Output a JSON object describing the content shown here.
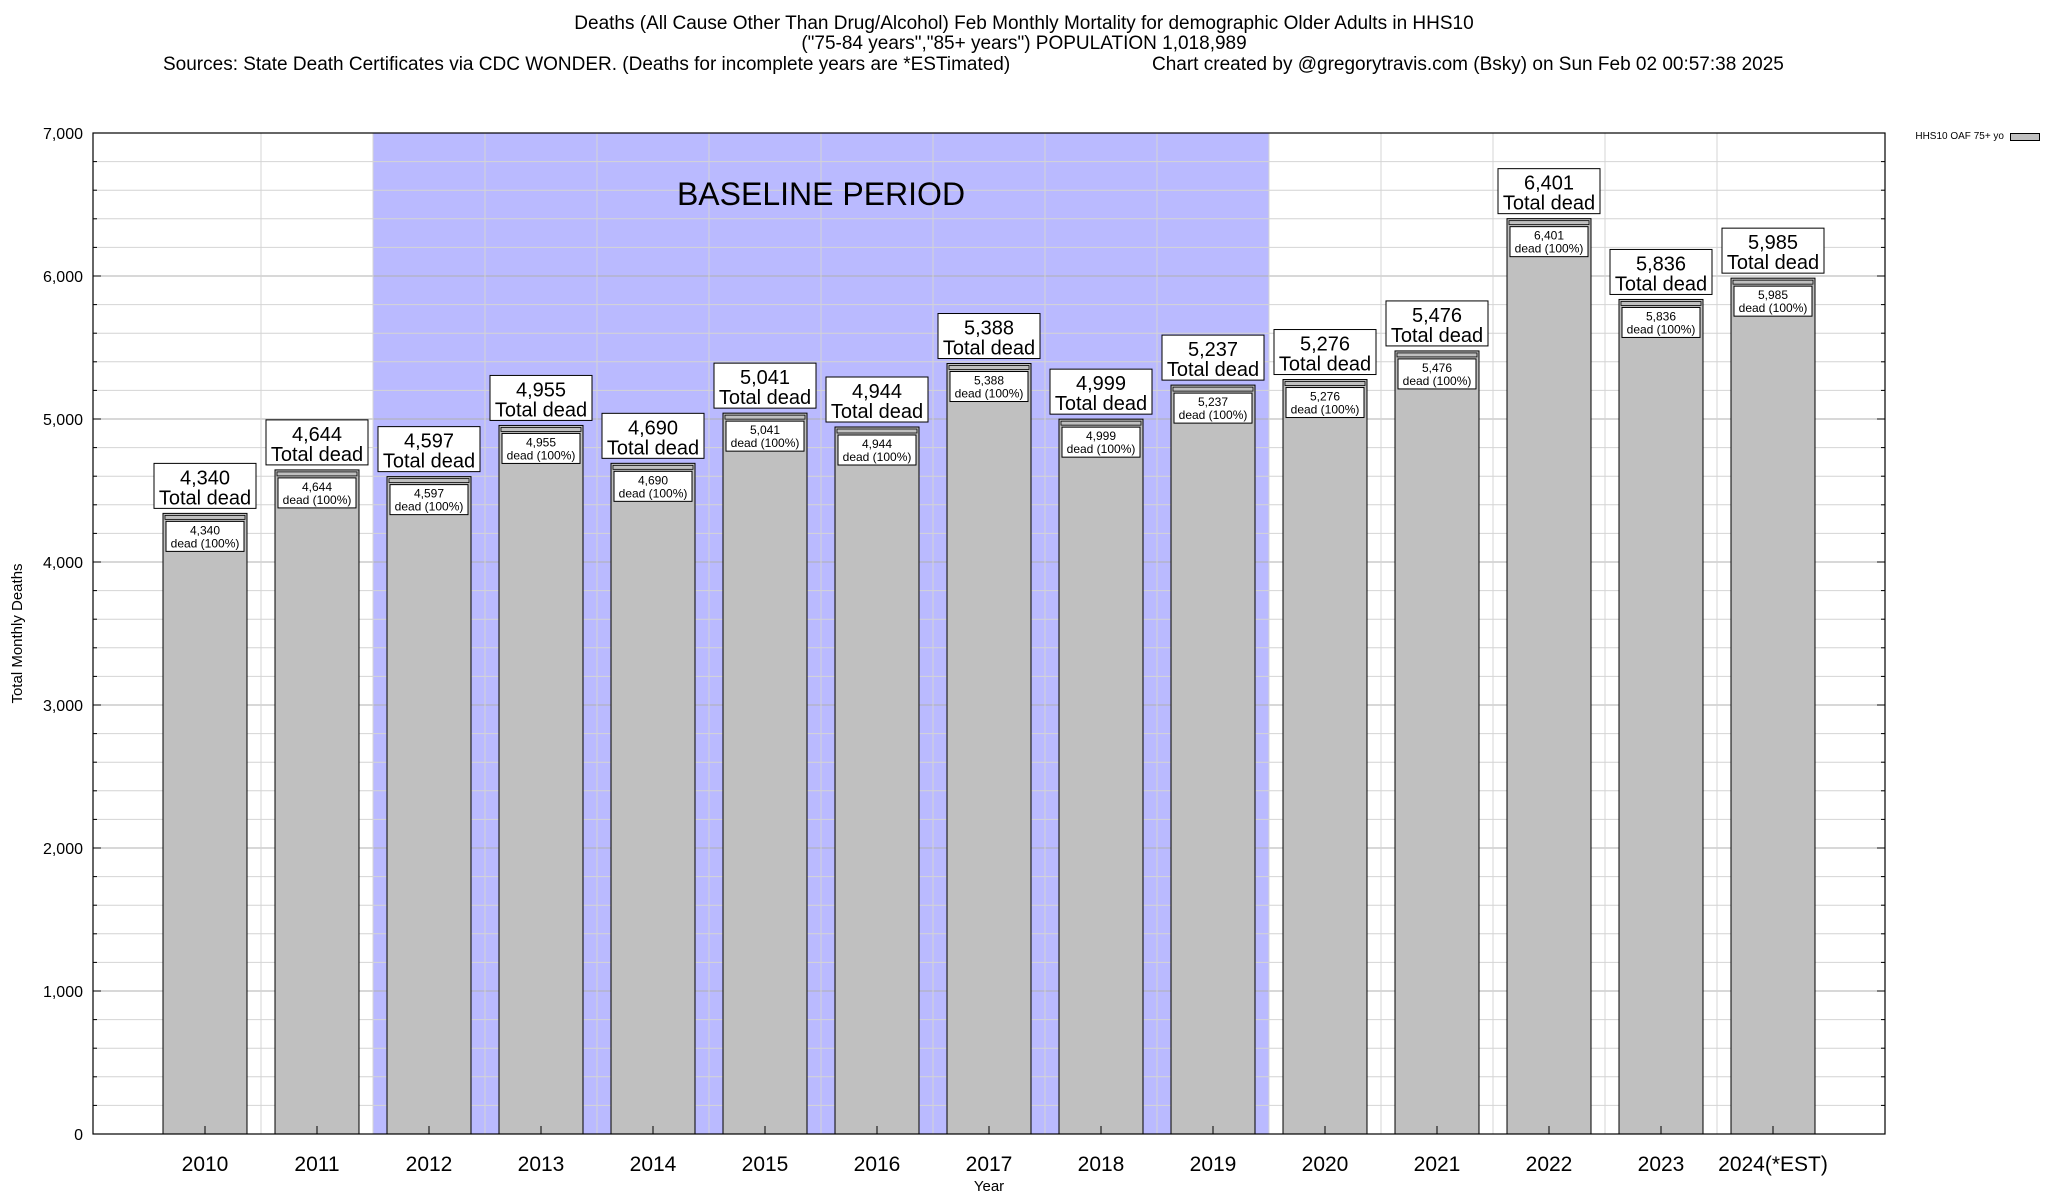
{
  "chart_data": {
    "type": "bar",
    "title": "Deaths (All Cause Other Than Drug/Alcohol) Feb Monthly Mortality for demographic Older Adults in HHS10",
    "subtitle": "(\"75-84 years\",\"85+ years\") POPULATION 1,018,989",
    "source": "Sources: State Death Certificates via CDC WONDER. (Deaths for incomplete years are *ESTimated)",
    "credit": "Chart created by @gregorytravis.com (Bsky) on Sun Feb 02 00:57:38 2025",
    "xlabel": "Year",
    "ylabel": "Total Monthly Deaths",
    "ylim": [
      0,
      7000
    ],
    "yticks": [
      0,
      1000,
      2000,
      3000,
      4000,
      5000,
      6000,
      7000
    ],
    "ytick_labels": [
      "0",
      "1,000",
      "2,000",
      "3,000",
      "4,000",
      "5,000",
      "6,000",
      "7,000"
    ],
    "categories": [
      "2010",
      "2011",
      "2012",
      "2013",
      "2014",
      "2015",
      "2016",
      "2017",
      "2018",
      "2019",
      "2020",
      "2021",
      "2022",
      "2023",
      "2024(*EST)"
    ],
    "series": [
      {
        "name": "HHS10 OAF 75+ yo",
        "color": "#c0c0c0",
        "values": [
          4340,
          4644,
          4597,
          4955,
          4690,
          5041,
          4944,
          5388,
          4999,
          5237,
          5276,
          5476,
          6401,
          5836,
          5985
        ],
        "value_labels": [
          "4,340",
          "4,644",
          "4,597",
          "4,955",
          "4,690",
          "5,041",
          "4,944",
          "5,388",
          "4,999",
          "5,237",
          "5,276",
          "5,476",
          "6,401",
          "5,836",
          "5,985"
        ]
      }
    ],
    "total_label": "Total dead",
    "inner_label": "dead (100%)",
    "baseline": {
      "label": "BASELINE PERIOD",
      "start": "2012",
      "end": "2019",
      "color": "#babaff"
    },
    "grid": true,
    "legend": "top-right"
  }
}
